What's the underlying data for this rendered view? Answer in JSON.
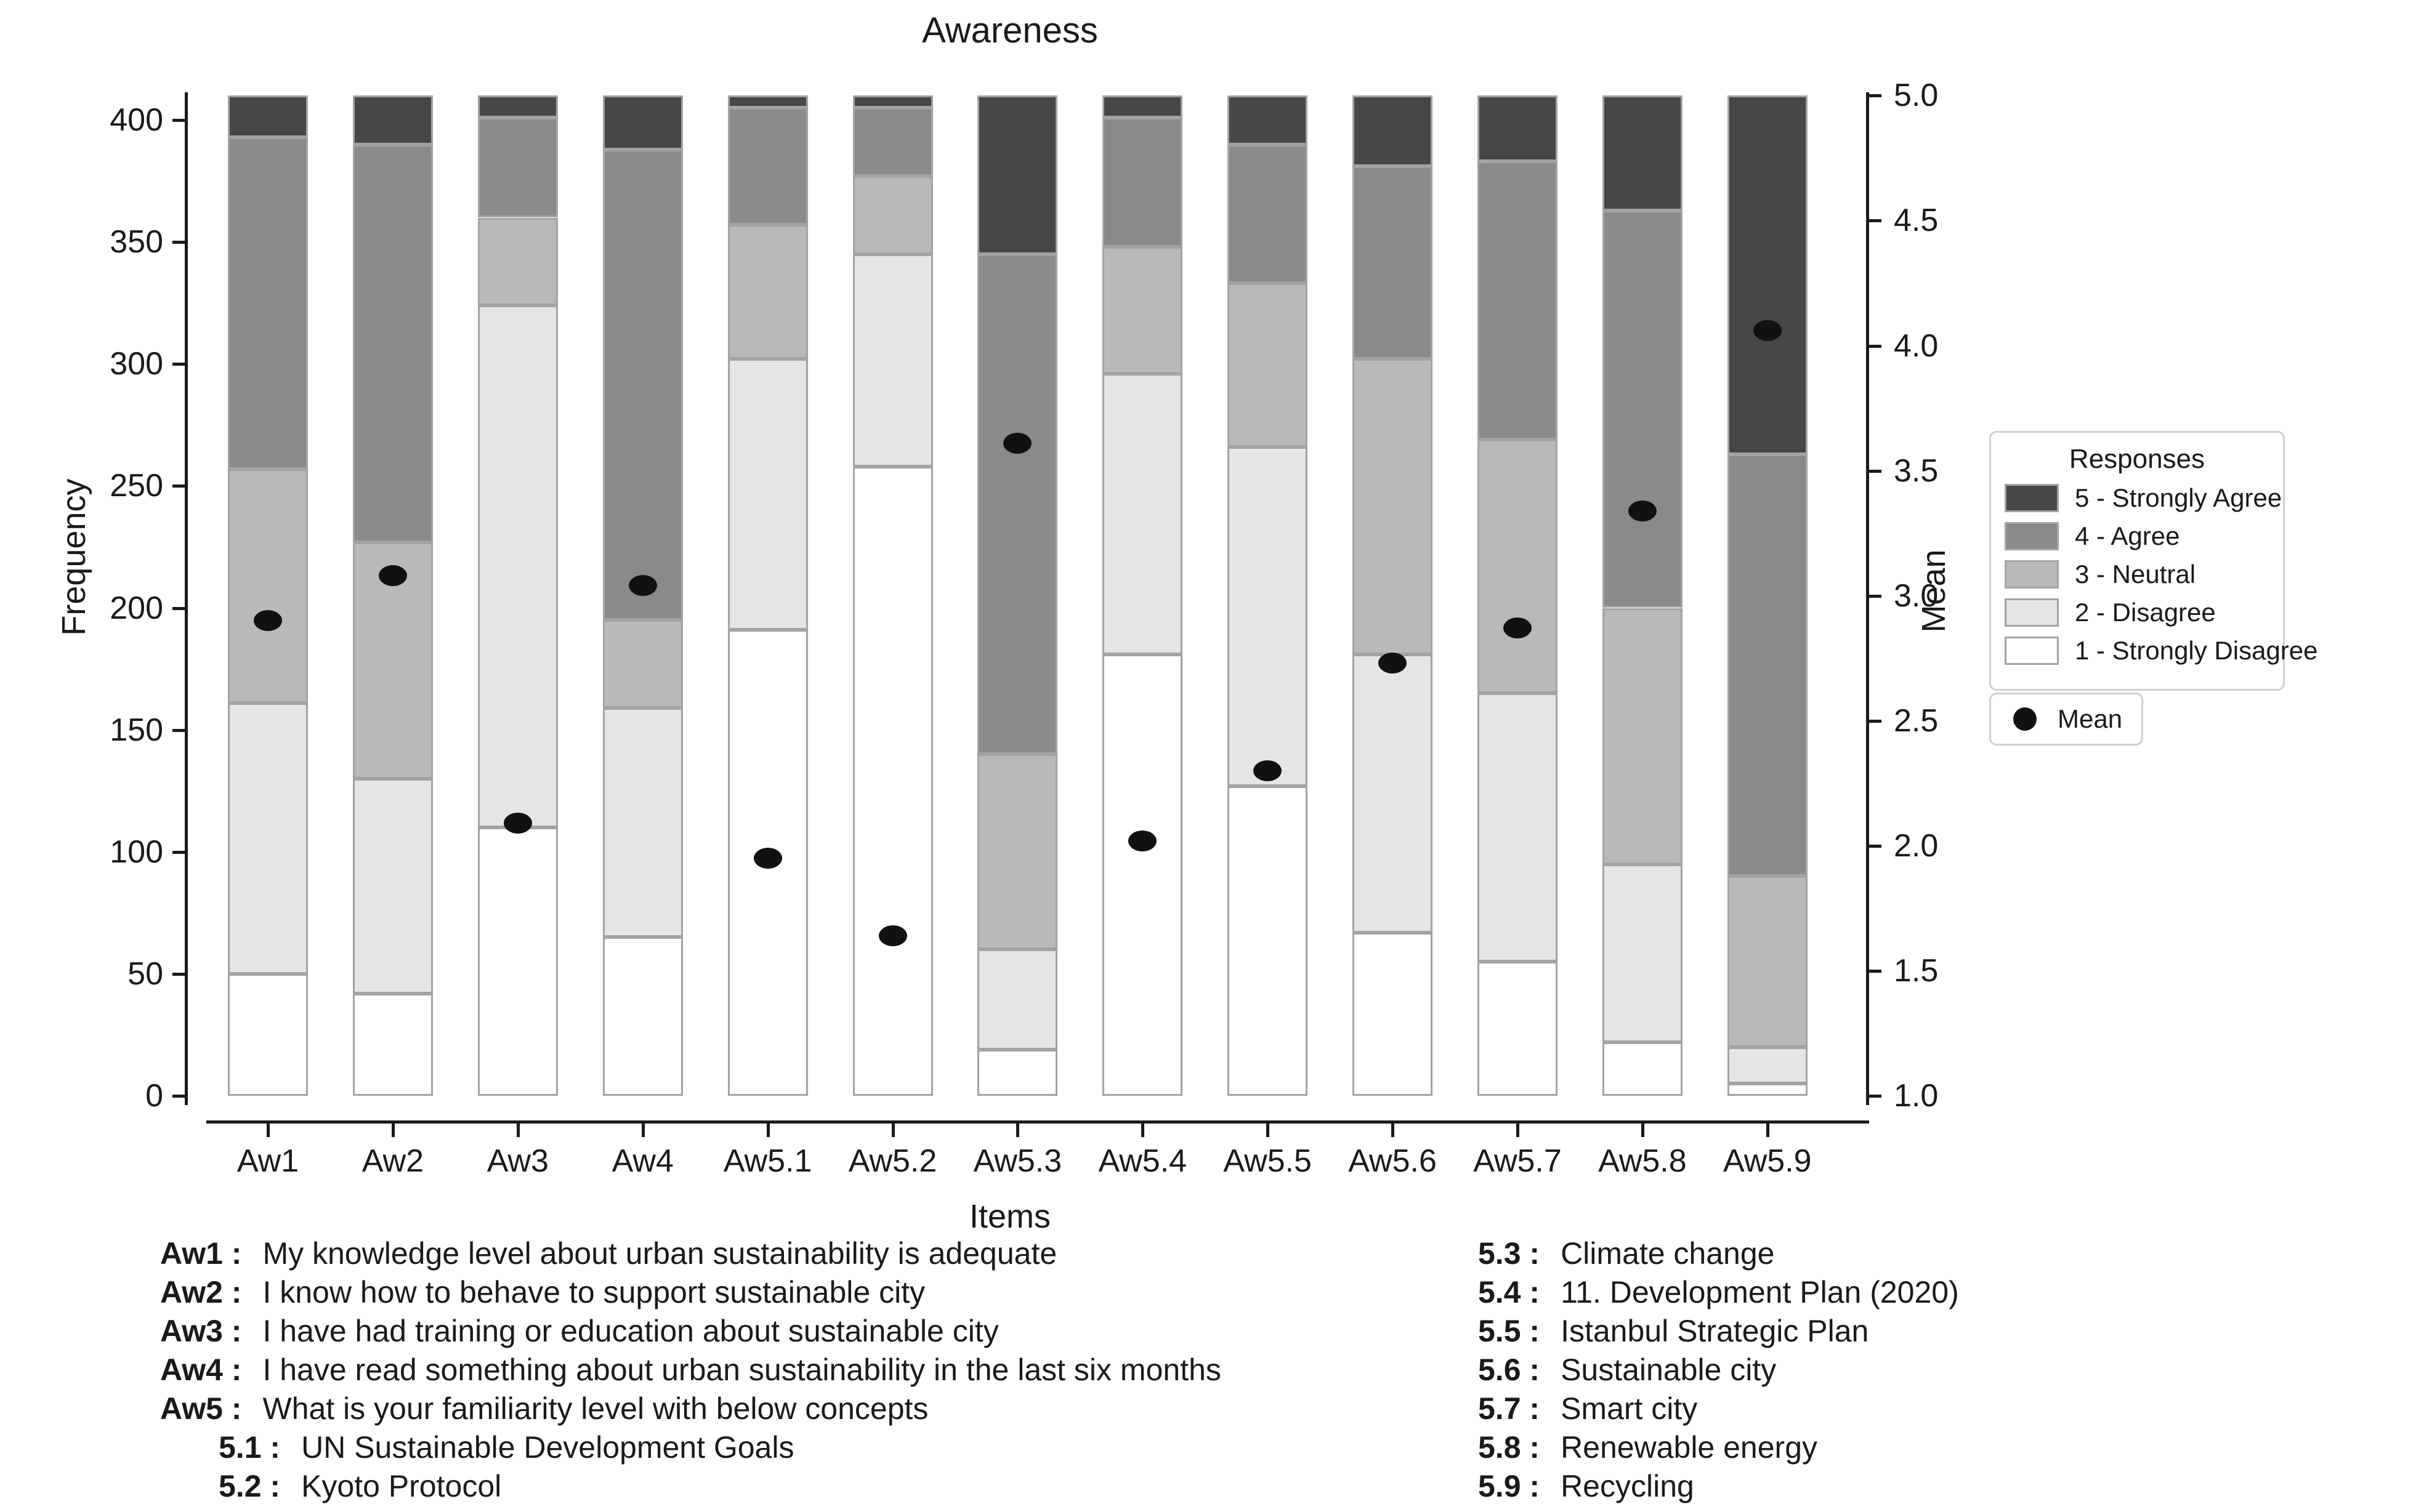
{
  "title": "Awareness",
  "axes": {
    "y_left_label": "Frequency",
    "y_right_label": "Mean",
    "x_label": "Items"
  },
  "legend": {
    "title": "Responses",
    "items": [
      {
        "label": "5 - Strongly Agree",
        "color": "#474747"
      },
      {
        "label": "4 - Agree",
        "color": "#8a8a8a"
      },
      {
        "label": "3 - Neutral",
        "color": "#b9b9b9"
      },
      {
        "label": "2 - Disagree",
        "color": "#e5e5e5"
      },
      {
        "label": "1 - Strongly Disagree",
        "color": "#ffffff"
      }
    ],
    "mean_label": "Mean",
    "mean_dot_color": "#111111"
  },
  "chart_data": {
    "type": "bar",
    "stacked": true,
    "grid": false,
    "legend_position": "right",
    "title": "Awareness",
    "xlabel": "Items",
    "ylabel_left": "Frequency",
    "ylabel_right": "Mean",
    "ylim_left": [
      0,
      415
    ],
    "ylim_right": [
      1.0,
      5.0
    ],
    "bar_total": 410,
    "yticks_left": [
      0,
      50,
      100,
      150,
      200,
      250,
      300,
      350,
      400
    ],
    "yticks_right": [
      1.0,
      1.5,
      2.0,
      2.5,
      3.0,
      3.5,
      4.0,
      4.5,
      5.0
    ],
    "categories": [
      "Aw1",
      "Aw2",
      "Aw3",
      "Aw4",
      "Aw5.1",
      "Aw5.2",
      "Aw5.3",
      "Aw5.4",
      "Aw5.5",
      "Aw5.6",
      "Aw5.7",
      "Aw5.8",
      "Aw5.9"
    ],
    "series": [
      {
        "name": "1 - Strongly Disagree",
        "color": "#ffffff",
        "values": [
          50,
          42,
          110,
          65,
          191,
          258,
          19,
          181,
          127,
          67,
          55,
          22,
          5
        ]
      },
      {
        "name": "2 - Disagree",
        "color": "#e5e5e5",
        "values": [
          111,
          88,
          214,
          94,
          111,
          87,
          41,
          115,
          139,
          114,
          110,
          73,
          15
        ]
      },
      {
        "name": "3 - Neutral",
        "color": "#b9b9b9",
        "values": [
          96,
          97,
          36,
          36,
          55,
          32,
          80,
          52,
          67,
          121,
          104,
          105,
          70
        ]
      },
      {
        "name": "4 - Agree",
        "color": "#8a8a8a",
        "values": [
          136,
          163,
          41,
          193,
          48,
          28,
          205,
          53,
          57,
          79,
          114,
          163,
          173
        ]
      },
      {
        "name": "5 - Strongly Agree",
        "color": "#474747",
        "values": [
          17,
          20,
          9,
          22,
          5,
          5,
          65,
          9,
          20,
          29,
          27,
          47,
          147
        ]
      }
    ],
    "mean_series": {
      "name": "Mean",
      "values": [
        2.9,
        3.08,
        2.09,
        3.04,
        1.95,
        1.64,
        3.61,
        2.02,
        2.3,
        2.73,
        2.87,
        3.34,
        4.06
      ]
    }
  },
  "footnotes": {
    "left": [
      {
        "key": "Aw1",
        "text": "My knowledge level about urban sustainability is adequate",
        "indent": false
      },
      {
        "key": "Aw2",
        "text": "I know how to behave to support sustainable city",
        "indent": false
      },
      {
        "key": "Aw3",
        "text": "I have had training or education about sustainable city",
        "indent": false
      },
      {
        "key": "Aw4",
        "text": "I have read something about urban sustainability in the last six months",
        "indent": false
      },
      {
        "key": "Aw5",
        "text": "What is your familiarity level with below concepts",
        "indent": false
      },
      {
        "key": "5.1",
        "text": "UN Sustainable Development Goals",
        "indent": true
      },
      {
        "key": "5.2",
        "text": "Kyoto Protocol",
        "indent": true
      }
    ],
    "right": [
      {
        "key": "5.3",
        "text": "Climate change",
        "indent": false
      },
      {
        "key": "5.4",
        "text": "11. Development Plan (2020)",
        "indent": false
      },
      {
        "key": "5.5",
        "text": "Istanbul Strategic Plan",
        "indent": false
      },
      {
        "key": "5.6",
        "text": "Sustainable city",
        "indent": false
      },
      {
        "key": "5.7",
        "text": "Smart city",
        "indent": false
      },
      {
        "key": "5.8",
        "text": "Renewable energy",
        "indent": false
      },
      {
        "key": "5.9",
        "text": "Recycling",
        "indent": false
      }
    ]
  }
}
